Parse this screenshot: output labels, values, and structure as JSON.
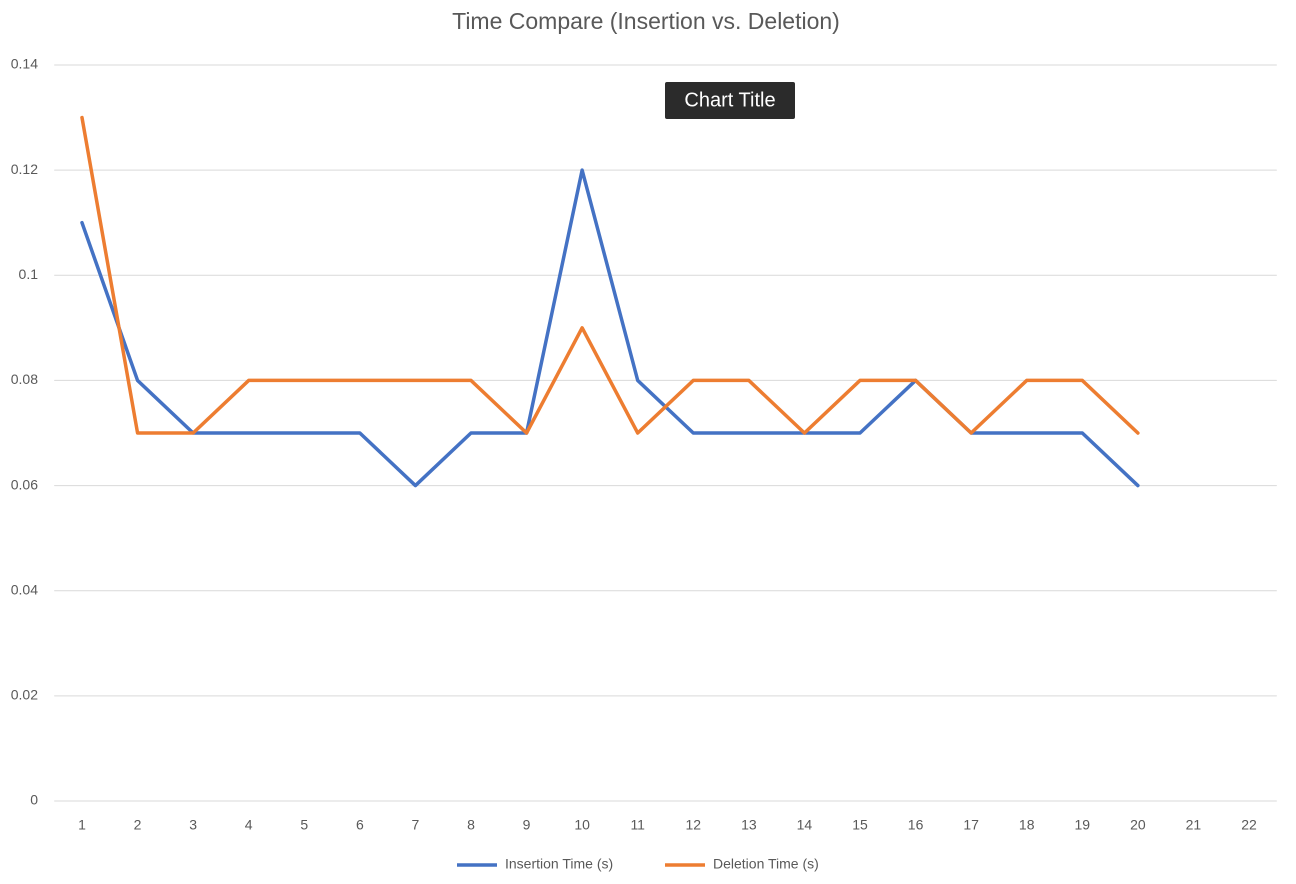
{
  "chart_data": {
    "type": "line",
    "title": "Time Compare (Insertion vs. Deletion)",
    "tooltip": "Chart Title",
    "categories": [
      1,
      2,
      3,
      4,
      5,
      6,
      7,
      8,
      9,
      10,
      11,
      12,
      13,
      14,
      15,
      16,
      17,
      18,
      19,
      20,
      21,
      22
    ],
    "series": [
      {
        "name": "Insertion Time (s)",
        "color": "#4472c4",
        "values": [
          0.11,
          0.08,
          0.07,
          0.07,
          0.07,
          0.07,
          0.06,
          0.07,
          0.07,
          0.12,
          0.08,
          0.07,
          0.07,
          0.07,
          0.07,
          0.08,
          0.07,
          0.07,
          0.07,
          0.06,
          null,
          null
        ]
      },
      {
        "name": "Deletion Time (s)",
        "color": "#ed7d31",
        "values": [
          0.13,
          0.07,
          0.07,
          0.08,
          0.08,
          0.08,
          0.08,
          0.08,
          0.07,
          0.09,
          0.07,
          0.08,
          0.08,
          0.07,
          0.08,
          0.08,
          0.07,
          0.08,
          0.08,
          0.07,
          null,
          null
        ]
      }
    ],
    "ylim": [
      0,
      0.14
    ],
    "yticks": [
      0,
      0.02,
      0.04,
      0.06,
      0.08,
      0.1,
      0.12,
      0.14
    ],
    "grid": true,
    "legend": "bottom"
  }
}
